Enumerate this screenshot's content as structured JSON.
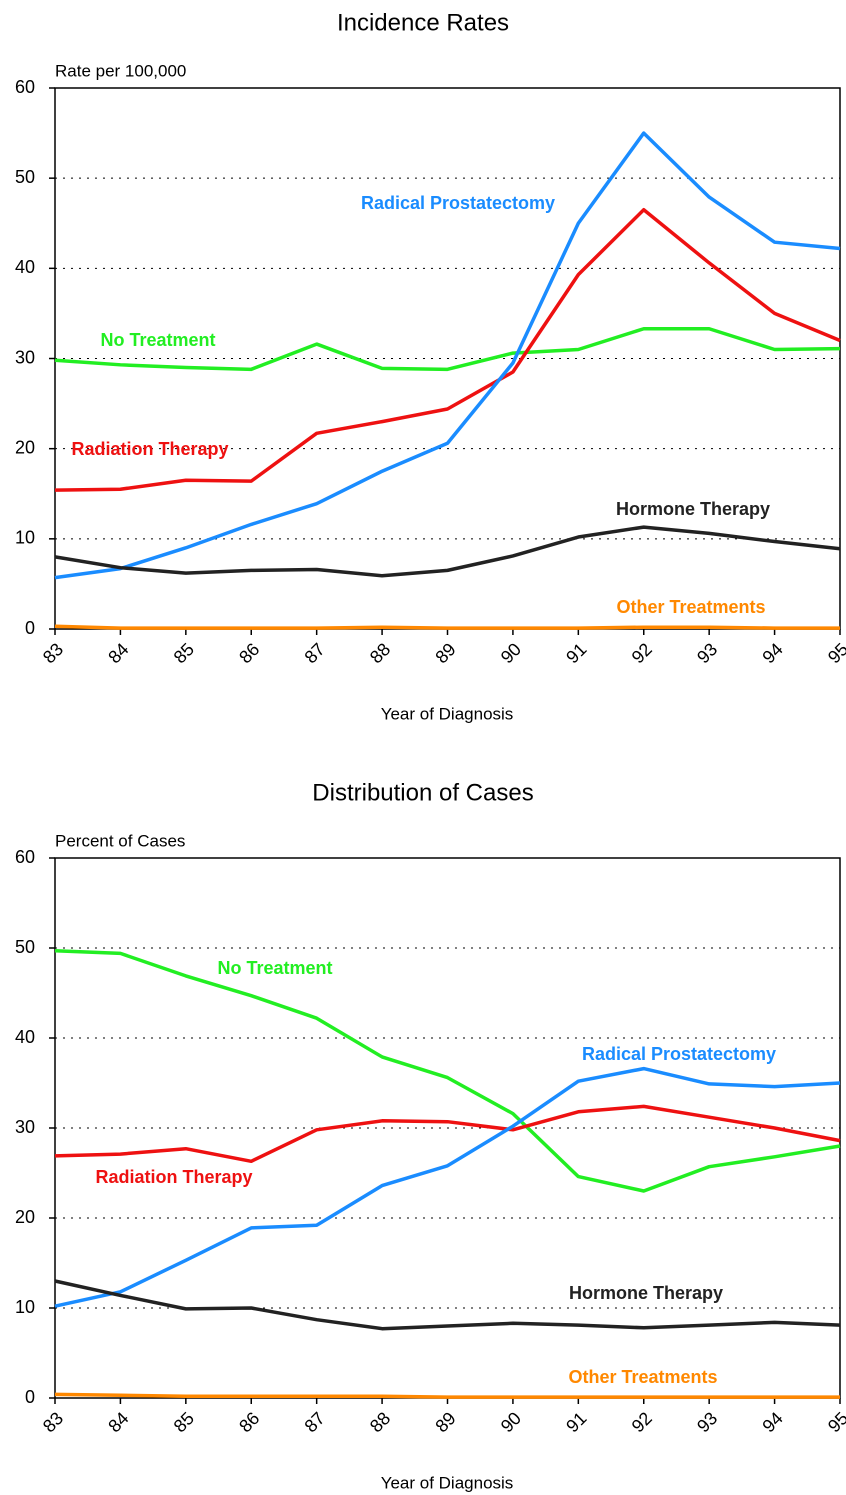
{
  "chart_data": [
    {
      "type": "line",
      "title": "Incidence Rates",
      "y_label": "Rate per 100,000",
      "x_label": "Year of Diagnosis",
      "categories": [
        "83",
        "84",
        "85",
        "86",
        "87",
        "88",
        "89",
        "90",
        "91",
        "92",
        "93",
        "94",
        "95"
      ],
      "ylim": [
        0,
        60
      ],
      "yticks": [
        0,
        10,
        20,
        30,
        40,
        50,
        60
      ],
      "grid": true,
      "series": [
        {
          "name": "No Treatment",
          "color": "#22ee22",
          "values": [
            29.8,
            29.3,
            29.0,
            28.8,
            31.6,
            28.9,
            28.8,
            30.6,
            31.0,
            33.3,
            33.3,
            31.0,
            31.1
          ]
        },
        {
          "name": "Radiation Therapy",
          "color": "#ee1111",
          "values": [
            15.4,
            15.5,
            16.5,
            16.4,
            21.7,
            23.0,
            24.4,
            28.5,
            39.3,
            46.5,
            40.6,
            35.0,
            32.0
          ]
        },
        {
          "name": "Radical Prostatectomy",
          "color": "#1a8cff",
          "values": [
            5.7,
            6.7,
            9.0,
            11.6,
            13.9,
            17.5,
            20.6,
            29.5,
            45.0,
            55.0,
            47.9,
            42.9,
            42.2
          ]
        },
        {
          "name": "Hormone Therapy",
          "color": "#222222",
          "values": [
            8.0,
            6.8,
            6.2,
            6.5,
            6.6,
            5.9,
            6.5,
            8.1,
            10.2,
            11.3,
            10.6,
            9.7,
            8.9
          ]
        },
        {
          "name": "Other Treatments",
          "color": "#ff8800",
          "values": [
            0.3,
            0.1,
            0.1,
            0.1,
            0.1,
            0.2,
            0.1,
            0.1,
            0.1,
            0.2,
            0.2,
            0.1,
            0.1
          ]
        }
      ]
    },
    {
      "type": "line",
      "title": "Distribution of Cases",
      "y_label": "Percent of Cases",
      "x_label": "Year of Diagnosis",
      "categories": [
        "83",
        "84",
        "85",
        "86",
        "87",
        "88",
        "89",
        "90",
        "91",
        "92",
        "93",
        "94",
        "95"
      ],
      "ylim": [
        0,
        60
      ],
      "yticks": [
        0,
        10,
        20,
        30,
        40,
        50,
        60
      ],
      "grid": true,
      "series": [
        {
          "name": "No Treatment",
          "color": "#22ee22",
          "values": [
            49.7,
            49.4,
            46.9,
            44.7,
            42.2,
            37.9,
            35.6,
            31.6,
            24.6,
            23.0,
            25.7,
            26.8,
            28.0
          ]
        },
        {
          "name": "Radiation Therapy",
          "color": "#ee1111",
          "values": [
            26.9,
            27.1,
            27.7,
            26.3,
            29.8,
            30.8,
            30.7,
            29.8,
            31.8,
            32.4,
            31.2,
            30.0,
            28.6
          ]
        },
        {
          "name": "Radical Prostatectomy",
          "color": "#1a8cff",
          "values": [
            10.2,
            11.8,
            15.3,
            18.9,
            19.2,
            23.6,
            25.8,
            30.2,
            35.2,
            36.6,
            34.9,
            34.6,
            35.0
          ]
        },
        {
          "name": "Hormone Therapy",
          "color": "#222222",
          "values": [
            13.0,
            11.4,
            9.9,
            10.0,
            8.7,
            7.7,
            8.0,
            8.3,
            8.1,
            7.8,
            8.1,
            8.4,
            8.1
          ]
        },
        {
          "name": "Other Treatments",
          "color": "#ff8800",
          "values": [
            0.4,
            0.3,
            0.2,
            0.2,
            0.2,
            0.2,
            0.1,
            0.1,
            0.1,
            0.1,
            0.1,
            0.1,
            0.1
          ]
        }
      ]
    }
  ]
}
